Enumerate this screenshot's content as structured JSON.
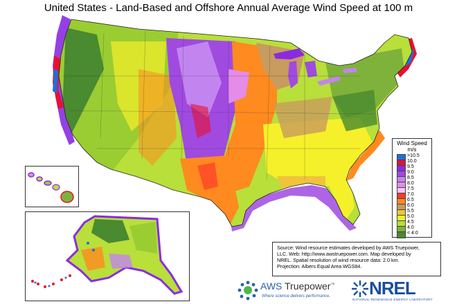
{
  "title": "United States - Land-Based and Offshore Annual Average Wind Speed at 100 m",
  "legend": {
    "title": "Wind Speed",
    "unit": "m/s",
    "items": [
      {
        "label": ">10.5",
        "color": "#1e6fd9"
      },
      {
        "label": "10.0",
        "color": "#e8112d"
      },
      {
        "label": "9.5",
        "color": "#8a2be2"
      },
      {
        "label": "9.0",
        "color": "#a04ae0"
      },
      {
        "label": "8.5",
        "color": "#c285f0"
      },
      {
        "label": "8.0",
        "color": "#e48ce8"
      },
      {
        "label": "7.5",
        "color": "#f5c6f5"
      },
      {
        "label": "7.0",
        "color": "#ff3b2a"
      },
      {
        "label": "6.5",
        "color": "#ff8a1f"
      },
      {
        "label": "6.0",
        "color": "#c89b5e"
      },
      {
        "label": "5.5",
        "color": "#f0c33c"
      },
      {
        "label": "5.0",
        "color": "#f5f02a"
      },
      {
        "label": "4.5",
        "color": "#b8df3a"
      },
      {
        "label": "4.0",
        "color": "#7fb23a"
      },
      {
        "label": "< 4.0",
        "color": "#4a8a30"
      }
    ]
  },
  "source": {
    "line1": "Source: Wind resource estimates developed by AWS Truepower,",
    "line2": "LLC.  Web: http://www.awstruepower.com. Map developed by",
    "line3": "NREL.  Spatial resolution of wind resource data: 2.0 km.",
    "line4": "Projection: Albers Equal Area WGS84."
  },
  "logos": {
    "aws_prefix": "AWS",
    "aws_name": "Truepower",
    "aws_tm": "™",
    "aws_tagline": "Where science delivers performance.",
    "nrel_name": "NREL",
    "nrel_sub": "NATIONAL RENEWABLE ENERGY LABORATORY"
  }
}
